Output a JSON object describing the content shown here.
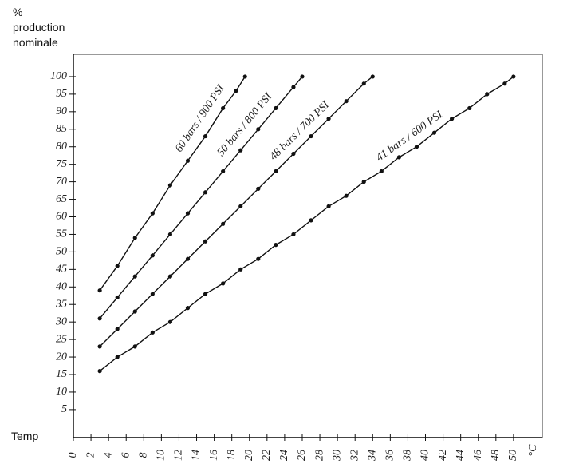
{
  "chart_data": {
    "type": "line",
    "ylabel": "%\nproduction\nnominale",
    "xlabel": "Temp",
    "xunit": "°C",
    "xlim": [
      0,
      53
    ],
    "ylim": [
      -3,
      105
    ],
    "xticks": [
      0,
      2,
      4,
      6,
      8,
      10,
      12,
      14,
      16,
      18,
      20,
      22,
      24,
      26,
      28,
      30,
      32,
      34,
      36,
      38,
      40,
      42,
      44,
      46,
      48,
      50
    ],
    "yticks": [
      5,
      10,
      15,
      20,
      25,
      30,
      35,
      40,
      45,
      50,
      55,
      60,
      65,
      70,
      75,
      80,
      85,
      90,
      95,
      100
    ],
    "frame": true,
    "series": [
      {
        "name": "60 bars / 900 PSI",
        "color": "#111111",
        "x": [
          3,
          5,
          7,
          9,
          11,
          13,
          15,
          17,
          18.5,
          19.5
        ],
        "values": [
          39,
          46,
          54,
          61,
          69,
          76,
          83,
          91,
          96,
          100
        ]
      },
      {
        "name": "50 bars / 800 PSI",
        "color": "#111111",
        "x": [
          3,
          5,
          7,
          9,
          11,
          13,
          15,
          17,
          19,
          21,
          23,
          25,
          26
        ],
        "values": [
          31,
          37,
          43,
          49,
          55,
          61,
          67,
          73,
          79,
          85,
          91,
          97,
          100
        ]
      },
      {
        "name": "48 bars / 700 PSI",
        "color": "#111111",
        "x": [
          3,
          5,
          7,
          9,
          11,
          13,
          15,
          17,
          19,
          21,
          23,
          25,
          27,
          29,
          31,
          33,
          34
        ],
        "values": [
          23,
          28,
          33,
          38,
          43,
          48,
          53,
          58,
          63,
          68,
          73,
          78,
          83,
          88,
          93,
          98,
          100
        ]
      },
      {
        "name": "41 bars / 600 PSI",
        "color": "#111111",
        "x": [
          3,
          5,
          7,
          9,
          11,
          13,
          15,
          17,
          19,
          21,
          23,
          25,
          27,
          29,
          31,
          33,
          35,
          37,
          39,
          41,
          43,
          45,
          47,
          49,
          50
        ],
        "values": [
          16,
          20,
          23,
          27,
          30,
          34,
          38,
          41,
          45,
          48,
          52,
          55,
          59,
          63,
          66,
          70,
          73,
          77,
          80,
          84,
          88,
          91,
          95,
          98,
          100
        ]
      }
    ]
  }
}
